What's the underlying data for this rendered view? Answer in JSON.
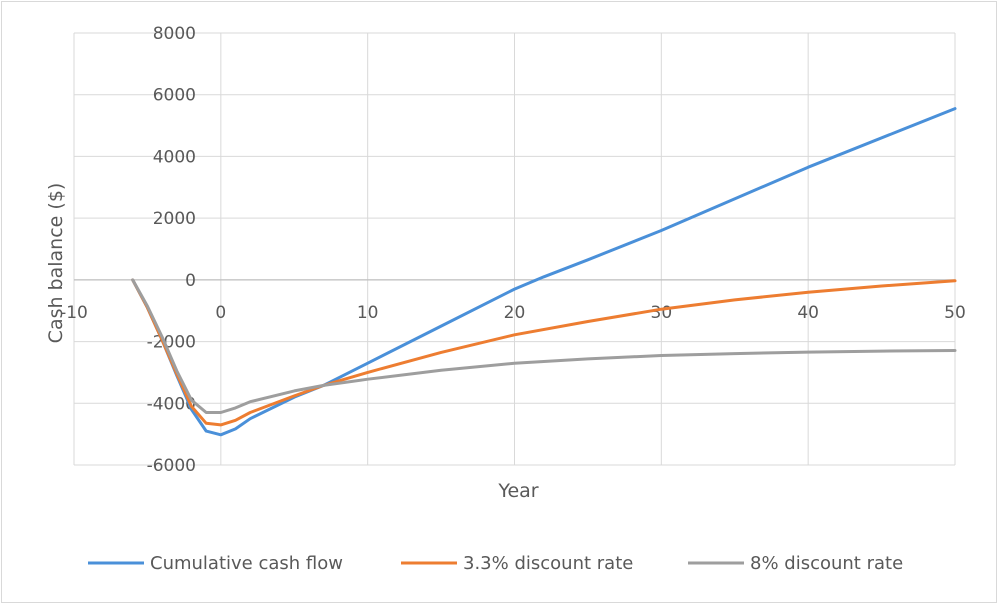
{
  "chart_data": {
    "type": "line",
    "xlabel": "Year",
    "ylabel": "Cash balance ($)",
    "xlim": [
      -10,
      50
    ],
    "ylim": [
      -6000,
      8000
    ],
    "x_ticks": [
      -10,
      0,
      10,
      20,
      30,
      40,
      50
    ],
    "y_ticks": [
      -6000,
      -4000,
      -2000,
      0,
      2000,
      4000,
      6000,
      8000
    ],
    "grid": true,
    "legend_position": "bottom",
    "series": [
      {
        "name": "Cumulative cash flow",
        "color": "#4a90d9",
        "x": [
          -6,
          -5,
          -4,
          -3,
          -2,
          -1,
          0,
          1,
          2,
          5,
          7,
          10,
          15,
          20,
          22,
          25,
          30,
          40,
          50
        ],
        "y": [
          0,
          -900,
          -1950,
          -3100,
          -4200,
          -4900,
          -5020,
          -4830,
          -4500,
          -3800,
          -3420,
          -2700,
          -1500,
          -300,
          100,
          650,
          1600,
          3650,
          5550
        ]
      },
      {
        "name": "3.3% discount rate",
        "color": "#ed7d31",
        "x": [
          -6,
          -5,
          -4,
          -3,
          -2,
          -1,
          0,
          1,
          2,
          5,
          7,
          10,
          15,
          20,
          25,
          30,
          35,
          40,
          45,
          50
        ],
        "y": [
          0,
          -900,
          -1950,
          -3050,
          -4100,
          -4650,
          -4700,
          -4550,
          -4300,
          -3760,
          -3420,
          -3000,
          -2350,
          -1780,
          -1350,
          -950,
          -650,
          -400,
          -200,
          -30
        ]
      },
      {
        "name": "8% discount rate",
        "color": "#9e9e9e",
        "x": [
          -6,
          -5,
          -4,
          -3,
          -2,
          -1,
          0,
          1,
          2,
          5,
          7,
          10,
          15,
          20,
          25,
          30,
          35,
          40,
          45,
          50
        ],
        "y": [
          0,
          -850,
          -1850,
          -2950,
          -3900,
          -4300,
          -4300,
          -4150,
          -3950,
          -3600,
          -3420,
          -3220,
          -2930,
          -2700,
          -2560,
          -2450,
          -2390,
          -2340,
          -2310,
          -2290
        ]
      }
    ]
  }
}
